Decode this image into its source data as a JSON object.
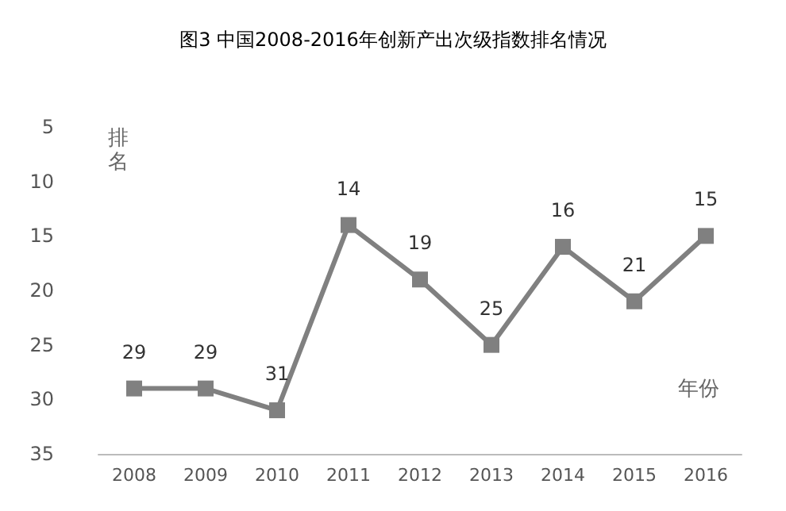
{
  "chart_data": {
    "type": "line",
    "title": "图3 中国2008-2016年创新产出次级指数排名情况",
    "xlabel": "年份",
    "ylabel": "排名",
    "categories": [
      "2008",
      "2009",
      "2010",
      "2011",
      "2012",
      "2013",
      "2014",
      "2015",
      "2016"
    ],
    "series": [
      {
        "color": "#808080",
        "values": [
          29,
          29,
          31,
          14,
          19,
          25,
          16,
          21,
          15
        ]
      }
    ],
    "ylim": [
      35,
      5
    ],
    "yticks": [
      5,
      10,
      15,
      20,
      25,
      30,
      35
    ],
    "data_labels": true,
    "marker": "square",
    "line_style": "solid"
  }
}
